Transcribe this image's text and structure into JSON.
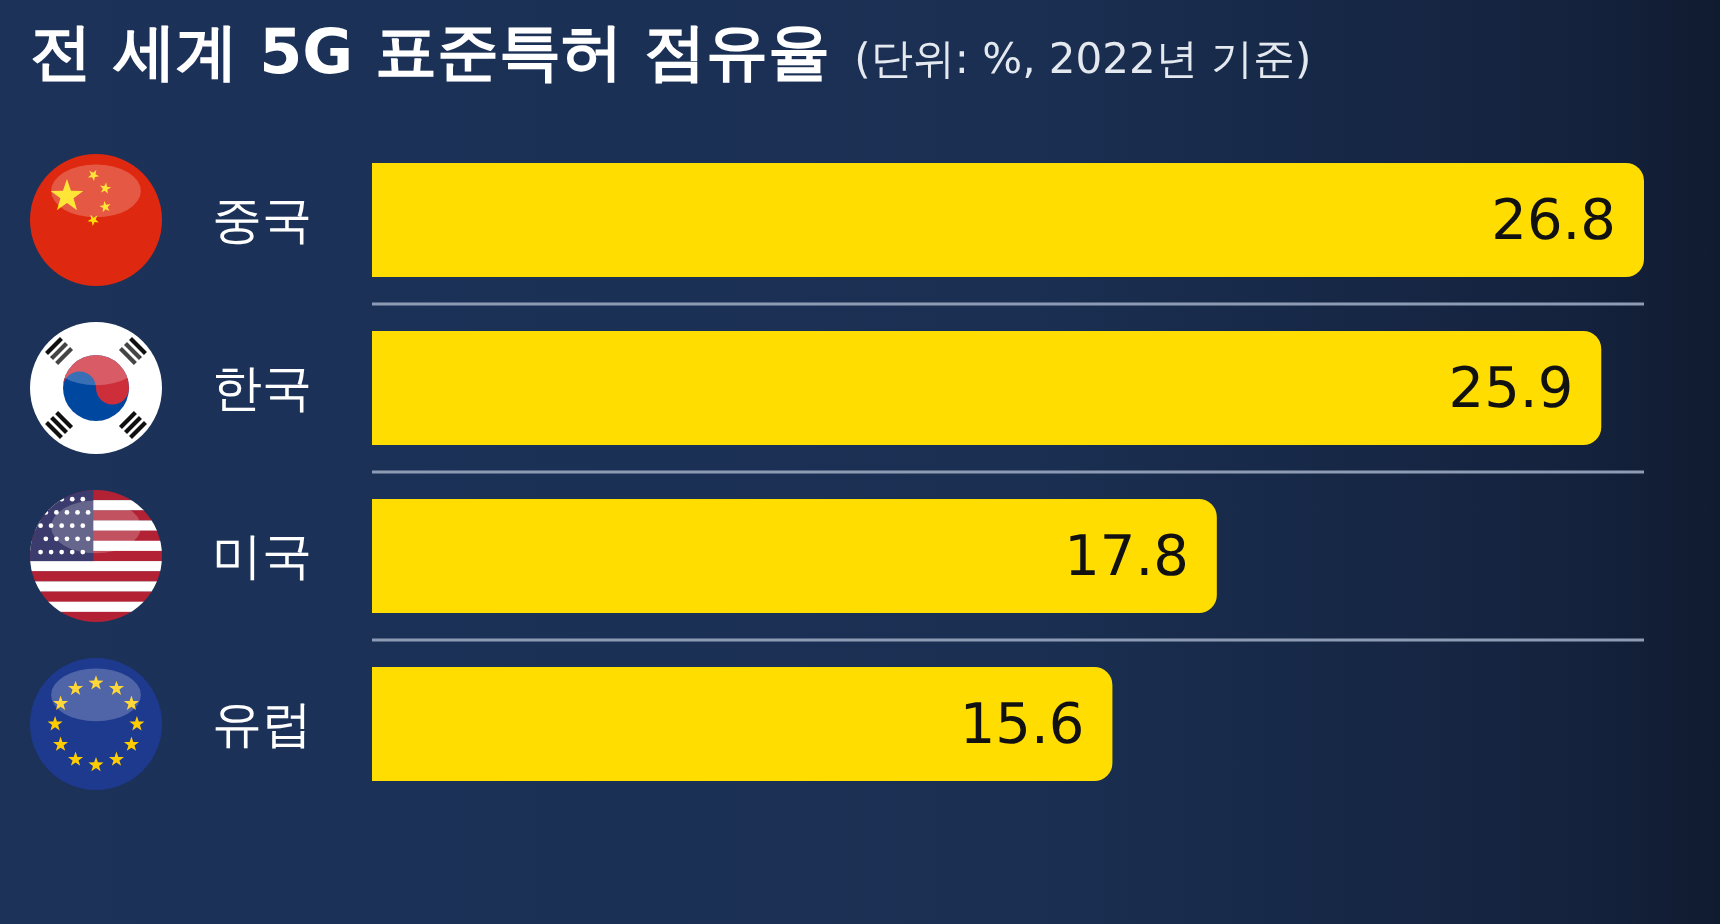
{
  "chart_data": {
    "type": "bar",
    "title": "전 세계 5G 표준특허 점유율",
    "subtitle": "(단위: %, 2022년 기준)",
    "orientation": "horizontal",
    "categories": [
      "중국",
      "한국",
      "미국",
      "유럽"
    ],
    "values": [
      26.8,
      25.9,
      17.8,
      15.6
    ],
    "color": "#ffdd00",
    "data_labels": true,
    "grid": "y",
    "tick_labels": "y"
  }
}
